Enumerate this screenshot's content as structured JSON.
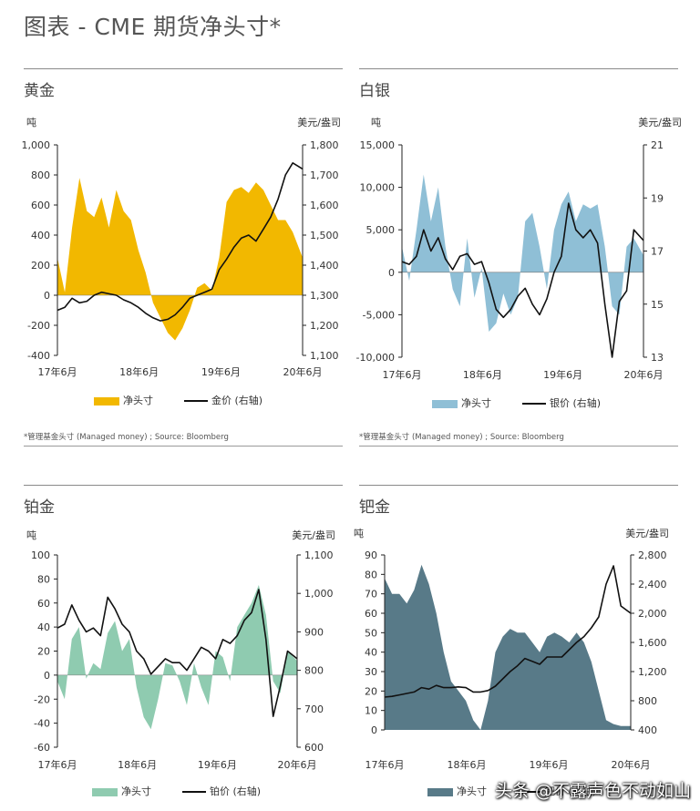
{
  "page": {
    "title": "图表 - CME 期货净头寸*"
  },
  "watermark": "头条 @不露声色不动如山",
  "chart_data": [
    {
      "id": "gold",
      "type": "area",
      "title": "黄金",
      "left_unit": "吨",
      "right_unit": "美元/盎司",
      "area_color": "#F2B800",
      "line_color": "#111111",
      "x_ticks": [
        "17年6月",
        "18年6月",
        "19年6月",
        "20年6月"
      ],
      "ylim_left": [
        -400,
        1000
      ],
      "left_ticks": [
        "1,000",
        "800",
        "600",
        "400",
        "200",
        "0",
        "-200",
        "-400"
      ],
      "ylim_right": [
        1100,
        1800
      ],
      "right_ticks": [
        "1,800",
        "1,700",
        "1,600",
        "1,500",
        "1,400",
        "1,300",
        "1,200",
        "1,100"
      ],
      "legend": {
        "area": "净头寸",
        "line": "金价 (右轴)"
      },
      "source": "*管理基金头寸 (Managed money) ; Source: Bloomberg",
      "x": [
        0,
        0.03,
        0.06,
        0.09,
        0.12,
        0.15,
        0.18,
        0.21,
        0.24,
        0.27,
        0.3,
        0.33,
        0.36,
        0.39,
        0.42,
        0.45,
        0.48,
        0.51,
        0.54,
        0.57,
        0.6,
        0.63,
        0.66,
        0.69,
        0.72,
        0.75,
        0.78,
        0.81,
        0.84,
        0.87,
        0.9,
        0.93,
        0.96,
        1
      ],
      "net_position": [
        250,
        20,
        450,
        780,
        560,
        520,
        650,
        450,
        700,
        560,
        500,
        300,
        150,
        -50,
        -150,
        -250,
        -300,
        -220,
        -100,
        50,
        80,
        30,
        250,
        620,
        700,
        720,
        680,
        750,
        700,
        600,
        500,
        500,
        420,
        250
      ],
      "price": [
        1250,
        1260,
        1290,
        1275,
        1280,
        1300,
        1310,
        1305,
        1300,
        1285,
        1275,
        1260,
        1240,
        1225,
        1215,
        1220,
        1235,
        1260,
        1290,
        1300,
        1310,
        1320,
        1385,
        1420,
        1460,
        1490,
        1500,
        1480,
        1520,
        1560,
        1620,
        1700,
        1740,
        1720
      ]
    },
    {
      "id": "silver",
      "type": "area",
      "title": "白银",
      "left_unit": "吨",
      "right_unit": "美元/盎司",
      "area_color": "#8FBFD6",
      "line_color": "#111111",
      "x_ticks": [
        "17年6月",
        "18年6月",
        "19年6月",
        "20年6月"
      ],
      "ylim_left": [
        -10000,
        15000
      ],
      "left_ticks": [
        "15,000",
        "10,000",
        "5,000",
        "0",
        "-5,000",
        "-10,000"
      ],
      "ylim_right": [
        13,
        21
      ],
      "right_ticks": [
        "21",
        "19",
        "17",
        "15",
        "13"
      ],
      "legend": {
        "area": "净头寸",
        "line": "银价 (右轴)"
      },
      "source": "*管理基金头寸 (Managed money) ; Source: Bloomberg",
      "x": [
        0,
        0.03,
        0.06,
        0.09,
        0.12,
        0.15,
        0.18,
        0.21,
        0.24,
        0.27,
        0.3,
        0.33,
        0.36,
        0.39,
        0.42,
        0.45,
        0.48,
        0.51,
        0.54,
        0.57,
        0.6,
        0.63,
        0.66,
        0.69,
        0.72,
        0.75,
        0.78,
        0.81,
        0.84,
        0.87,
        0.9,
        0.93,
        0.96,
        1
      ],
      "net_position": [
        3000,
        -1000,
        5000,
        11500,
        6000,
        10000,
        3000,
        -2000,
        -4000,
        4000,
        -3000,
        500,
        -7000,
        -6000,
        -2500,
        -5000,
        -3000,
        6000,
        7000,
        3000,
        -2000,
        5000,
        8000,
        9500,
        6000,
        8000,
        7500,
        8000,
        3000,
        -4000,
        -5000,
        3000,
        4000,
        2000
      ],
      "price": [
        16.6,
        16.5,
        16.8,
        17.8,
        17.0,
        17.5,
        16.7,
        16.3,
        16.8,
        16.9,
        16.5,
        16.6,
        15.8,
        14.8,
        14.5,
        14.8,
        15.3,
        15.6,
        15.0,
        14.6,
        15.2,
        16.2,
        16.8,
        18.8,
        17.8,
        17.5,
        17.8,
        17.3,
        15.0,
        13.0,
        15.1,
        15.5,
        17.8,
        17.4
      ]
    },
    {
      "id": "platinum",
      "type": "area",
      "title": "铂金",
      "left_unit": "吨",
      "right_unit": "美元/盎司",
      "area_color": "#8FCBB0",
      "line_color": "#111111",
      "x_ticks": [
        "17年6月",
        "18年6月",
        "19年6月",
        "20年6月"
      ],
      "ylim_left": [
        -60,
        100
      ],
      "left_ticks": [
        "100",
        "80",
        "60",
        "40",
        "20",
        "0",
        "-20",
        "-40",
        "-60"
      ],
      "ylim_right": [
        600,
        1100
      ],
      "right_ticks": [
        "1,100",
        "1,000",
        "900",
        "800",
        "700",
        "600"
      ],
      "legend": {
        "area": "净头寸",
        "line": "铂价 (右轴)"
      },
      "source": "",
      "x": [
        0,
        0.03,
        0.06,
        0.09,
        0.12,
        0.15,
        0.18,
        0.21,
        0.24,
        0.27,
        0.3,
        0.33,
        0.36,
        0.39,
        0.42,
        0.45,
        0.48,
        0.51,
        0.54,
        0.57,
        0.6,
        0.63,
        0.66,
        0.69,
        0.72,
        0.75,
        0.78,
        0.81,
        0.84,
        0.87,
        0.9,
        0.93,
        0.96,
        1
      ],
      "net_position": [
        -5,
        -20,
        30,
        40,
        -3,
        10,
        5,
        35,
        45,
        20,
        30,
        -10,
        -35,
        -45,
        -20,
        10,
        8,
        -5,
        -25,
        10,
        -10,
        -25,
        20,
        15,
        -5,
        40,
        50,
        60,
        75,
        50,
        -5,
        -15,
        20,
        12
      ],
      "price": [
        910,
        920,
        970,
        930,
        900,
        910,
        890,
        990,
        960,
        920,
        900,
        850,
        830,
        790,
        810,
        830,
        820,
        820,
        800,
        830,
        860,
        850,
        830,
        880,
        870,
        890,
        930,
        950,
        1010,
        880,
        680,
        760,
        850,
        830
      ]
    },
    {
      "id": "palladium",
      "type": "area",
      "title": "钯金",
      "left_unit": "吨",
      "right_unit": "美元/盎司",
      "area_color": "#587A88",
      "line_color": "#111111",
      "x_ticks": [
        "17年6月",
        "18年6月",
        "19年6月",
        "20年6月"
      ],
      "ylim_left": [
        0,
        90
      ],
      "left_ticks": [
        "90",
        "80",
        "70",
        "60",
        "50",
        "40",
        "30",
        "20",
        "10",
        "0"
      ],
      "ylim_right": [
        400,
        2800
      ],
      "right_ticks": [
        "2,800",
        "2,400",
        "2,000",
        "1,600",
        "1,200",
        "800",
        "400"
      ],
      "legend": {
        "area": "净头寸",
        "line": "钯价 (右轴)"
      },
      "source": "",
      "x": [
        0,
        0.03,
        0.06,
        0.09,
        0.12,
        0.15,
        0.18,
        0.21,
        0.24,
        0.27,
        0.3,
        0.33,
        0.36,
        0.39,
        0.42,
        0.45,
        0.48,
        0.51,
        0.54,
        0.57,
        0.6,
        0.63,
        0.66,
        0.69,
        0.72,
        0.75,
        0.78,
        0.81,
        0.84,
        0.87,
        0.9,
        0.93,
        0.96,
        1
      ],
      "net_position": [
        78,
        70,
        70,
        65,
        72,
        85,
        75,
        60,
        40,
        25,
        20,
        15,
        5,
        0,
        15,
        40,
        48,
        52,
        50,
        50,
        45,
        40,
        48,
        50,
        48,
        45,
        50,
        45,
        35,
        20,
        5,
        3,
        2,
        2
      ],
      "price": [
        850,
        860,
        880,
        900,
        920,
        980,
        960,
        1010,
        980,
        980,
        990,
        980,
        920,
        920,
        940,
        1000,
        1100,
        1200,
        1280,
        1380,
        1340,
        1300,
        1400,
        1400,
        1400,
        1500,
        1600,
        1680,
        1800,
        1950,
        2400,
        2650,
        2100,
        2000
      ]
    }
  ]
}
